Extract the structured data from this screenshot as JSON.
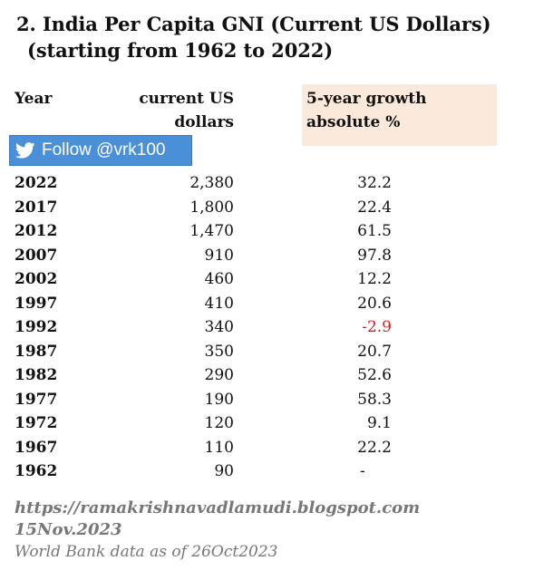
{
  "title": {
    "line1": "2. India Per Capita GNI (Current US Dollars)",
    "line2": "(starting from 1962 to 2022)"
  },
  "headers": {
    "year": "Year",
    "usd_line1": "current US",
    "usd_line2": "dollars",
    "growth_line1": "5-year growth",
    "growth_line2": "absolute %"
  },
  "follow_button": {
    "label": "Follow @vrk100",
    "icon": "twitter-bird-icon",
    "color": "#4a90d9"
  },
  "rows": [
    {
      "year": "2022",
      "usd": "2,380",
      "growth": "32.2"
    },
    {
      "year": "2017",
      "usd": "1,800",
      "growth": "22.4"
    },
    {
      "year": "2012",
      "usd": "1,470",
      "growth": "61.5"
    },
    {
      "year": "2007",
      "usd": "910",
      "growth": "97.8"
    },
    {
      "year": "2002",
      "usd": "460",
      "growth": "12.2"
    },
    {
      "year": "1997",
      "usd": "410",
      "growth": "20.6"
    },
    {
      "year": "1992",
      "usd": "340",
      "growth": "-2.9"
    },
    {
      "year": "1987",
      "usd": "350",
      "growth": "20.7"
    },
    {
      "year": "1982",
      "usd": "290",
      "growth": "52.6"
    },
    {
      "year": "1977",
      "usd": "190",
      "growth": "58.3"
    },
    {
      "year": "1972",
      "usd": "120",
      "growth": "9.1"
    },
    {
      "year": "1967",
      "usd": "110",
      "growth": "22.2"
    },
    {
      "year": "1962",
      "usd": "90",
      "growth": "-"
    }
  ],
  "colors": {
    "negative": "#dd1c1c",
    "header_highlight": "#fbe9db",
    "footer_text": "#777777"
  },
  "footer": {
    "url": "https://ramakrishnavadlamudi.blogspot.com",
    "date": "15Nov.2023",
    "source": "World Bank data as of 26Oct2023"
  }
}
